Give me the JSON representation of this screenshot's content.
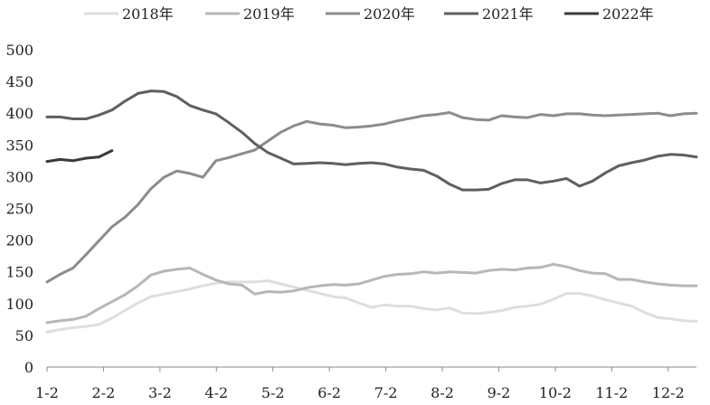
{
  "chart_data": {
    "type": "line",
    "title": "",
    "xlabel": "",
    "ylabel": "",
    "ylim": [
      0,
      500
    ],
    "y_ticks": [
      "0",
      "50",
      "100",
      "150",
      "200",
      "250",
      "300",
      "350",
      "400",
      "450",
      "500"
    ],
    "x_tick_labels": [
      "1-2",
      "2-2",
      "3-2",
      "4-2",
      "5-2",
      "6-2",
      "7-2",
      "8-2",
      "9-2",
      "10-2",
      "11-2",
      "12-2"
    ],
    "legend_position": "top",
    "grid": false,
    "series": [
      {
        "name": "2018年",
        "color": "#dedede",
        "values": [
          55,
          59,
          62,
          64,
          67,
          77,
          89,
          101,
          111,
          115,
          119,
          123,
          128,
          132,
          134,
          134,
          134,
          136,
          131,
          126,
          121,
          116,
          111,
          109,
          101,
          94,
          98,
          96,
          96,
          92,
          90,
          93,
          85,
          84,
          86,
          89,
          94,
          96,
          99,
          107,
          116,
          116,
          112,
          106,
          101,
          96,
          86,
          78,
          76,
          73,
          72
        ]
      },
      {
        "name": "2019年",
        "color": "#b7b7b7",
        "values": [
          70,
          73,
          75,
          80,
          92,
          103,
          114,
          128,
          145,
          151,
          154,
          156,
          146,
          137,
          131,
          129,
          115,
          119,
          118,
          120,
          125,
          128,
          130,
          129,
          131,
          137,
          143,
          146,
          147,
          150,
          148,
          150,
          149,
          148,
          152,
          154,
          153,
          156,
          157,
          162,
          158,
          152,
          148,
          147,
          138,
          138,
          134,
          131,
          129,
          128,
          128
        ]
      },
      {
        "name": "2020年",
        "color": "#8c8c8c",
        "values": [
          134,
          146,
          156,
          177,
          199,
          221,
          236,
          256,
          281,
          299,
          309,
          305,
          299,
          325,
          330,
          336,
          342,
          356,
          370,
          380,
          387,
          383,
          381,
          377,
          378,
          380,
          383,
          388,
          392,
          396,
          398,
          401,
          393,
          390,
          389,
          396,
          394,
          393,
          398,
          396,
          399,
          399,
          397,
          396,
          397,
          398,
          399,
          400,
          396,
          399,
          400
        ]
      },
      {
        "name": "2021年",
        "color": "#5f5f5f",
        "values": [
          394,
          394,
          391,
          391,
          397,
          405,
          419,
          431,
          435,
          434,
          426,
          412,
          405,
          399,
          385,
          370,
          352,
          338,
          329,
          320,
          321,
          322,
          321,
          319,
          321,
          322,
          320,
          315,
          312,
          310,
          301,
          288,
          279,
          279,
          280,
          289,
          295,
          295,
          290,
          293,
          297,
          285,
          293,
          306,
          317,
          322,
          326,
          332,
          335,
          334,
          331
        ]
      },
      {
        "name": "2022年",
        "color": "#3a3a3a",
        "values": [
          324,
          327,
          325,
          329,
          331,
          341
        ]
      }
    ]
  }
}
